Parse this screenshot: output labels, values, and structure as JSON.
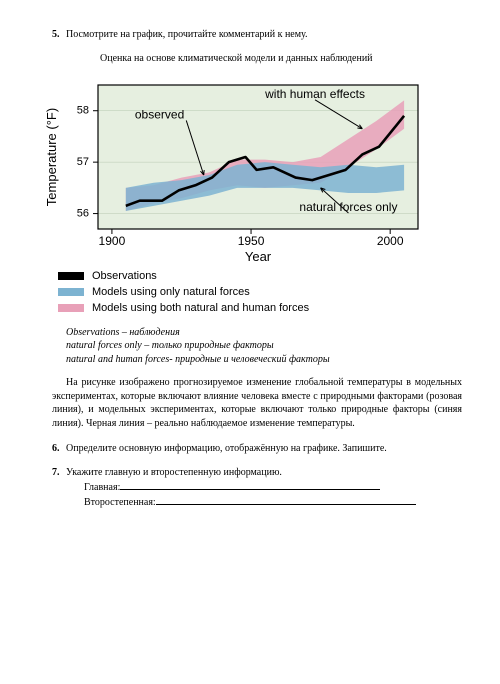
{
  "q5": {
    "num": "5.",
    "text": "Посмотрите на график, прочитайте комментарий к нему.",
    "subtitle": "Оценка на основе климатической модели и данных наблюдений"
  },
  "chart": {
    "ylabel": "Temperature (°F)",
    "xlabel": "Year",
    "yticks": [
      56,
      57,
      58
    ],
    "xticks": [
      1900,
      1950,
      2000
    ],
    "annot_observed": "observed",
    "annot_human": "with human effects",
    "annot_natural": "natural forces only",
    "series": {
      "human_band": {
        "color": "#e8a0b8",
        "xs": [
          1905,
          1915,
          1925,
          1935,
          1945,
          1955,
          1965,
          1975,
          1985,
          1995,
          2005
        ],
        "y_top": [
          56.5,
          56.55,
          56.7,
          56.8,
          57.05,
          57.05,
          57.0,
          57.1,
          57.45,
          57.8,
          58.2
        ],
        "y_bot": [
          56.05,
          56.2,
          56.3,
          56.45,
          56.55,
          56.5,
          56.55,
          56.6,
          56.9,
          57.25,
          57.65
        ]
      },
      "natural_band": {
        "color": "#7db3d1",
        "xs": [
          1905,
          1915,
          1925,
          1935,
          1945,
          1955,
          1965,
          1975,
          1985,
          1995,
          2005
        ],
        "y_top": [
          56.5,
          56.6,
          56.65,
          56.75,
          56.95,
          57.0,
          56.95,
          56.9,
          56.95,
          56.9,
          56.95
        ],
        "y_bot": [
          56.05,
          56.15,
          56.25,
          56.35,
          56.5,
          56.5,
          56.5,
          56.45,
          56.4,
          56.4,
          56.45
        ]
      },
      "observed_line": {
        "color": "#000000",
        "xs": [
          1905,
          1910,
          1918,
          1924,
          1930,
          1936,
          1942,
          1948,
          1952,
          1958,
          1966,
          1972,
          1978,
          1984,
          1990,
          1996,
          2002,
          2005
        ],
        "ys": [
          56.15,
          56.25,
          56.25,
          56.45,
          56.55,
          56.7,
          57.0,
          57.1,
          56.85,
          56.9,
          56.7,
          56.65,
          56.75,
          56.85,
          57.15,
          57.3,
          57.7,
          57.9
        ]
      }
    },
    "ylim": [
      55.7,
      58.5
    ],
    "xlim": [
      1895,
      2010
    ],
    "legend": {
      "obs": "Observations",
      "nat": "Models using only natural forces",
      "hum": "Models using both natural and human forces"
    }
  },
  "glossary": {
    "l1": "Observations – наблюдения",
    "l2": "natural forces only – только природные факторы",
    "l3": "natural and human forces- природные и человеческий факторы"
  },
  "body": "На рисунке изображено прогнозируемое изменение глобальной температуры в модельных экспериментах, которые включают влияние человека вместе с природными факторами (розовая линия), и модельных экспериментах, которые включают только природные факторы (синяя линия). Черная линия – реально наблюдаемое изменение температуры.",
  "q6": {
    "num": "6.",
    "text": "Определите основную информацию, отображённую на графике. Запишите."
  },
  "q7": {
    "num": "7.",
    "text": "Укажите главную и второстепенную информацию.",
    "main_label": "Главная:",
    "sec_label": "Второстепенная:"
  }
}
